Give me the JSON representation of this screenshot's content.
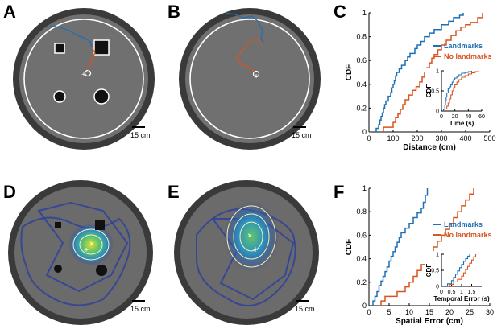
{
  "panels": {
    "A": "A",
    "B": "B",
    "C": "C",
    "D": "D",
    "E": "E",
    "F": "F"
  },
  "scale_bar_label": "15 cm",
  "colors": {
    "landmarks": "#1f6fb4",
    "no_landmarks": "#d9541e",
    "arena_floor": "#6e6e6e",
    "arena_rim": "#3a3a3a",
    "heatmap_low": "#2a3f9e",
    "heatmap_high": "#e6e02a"
  },
  "chart_data": [
    {
      "panel": "C",
      "type": "line",
      "step": true,
      "xlabel": "Distance (cm)",
      "ylabel": "CDF",
      "xlim": [
        0,
        500
      ],
      "ylim": [
        0,
        1
      ],
      "xticks": [
        0,
        100,
        200,
        300,
        400,
        500
      ],
      "yticks": [
        0,
        0.2,
        0.4,
        0.6,
        0.8,
        1
      ],
      "legend": "right",
      "series": [
        {
          "name": "Landmarks",
          "color": "#1f6fb4",
          "x": [
            30,
            40,
            45,
            50,
            55,
            60,
            65,
            70,
            80,
            90,
            95,
            100,
            105,
            110,
            115,
            125,
            135,
            150,
            160,
            170,
            190,
            200,
            215,
            230,
            250,
            270,
            300,
            330,
            350,
            375,
            390
          ],
          "y": [
            0.03,
            0.06,
            0.1,
            0.13,
            0.16,
            0.2,
            0.23,
            0.26,
            0.3,
            0.33,
            0.37,
            0.4,
            0.43,
            0.47,
            0.5,
            0.53,
            0.56,
            0.6,
            0.63,
            0.66,
            0.7,
            0.73,
            0.76,
            0.8,
            0.83,
            0.86,
            0.9,
            0.93,
            0.96,
            0.98,
            1.0
          ]
        },
        {
          "name": "No landmarks",
          "color": "#d9541e",
          "x": [
            60,
            100,
            110,
            120,
            130,
            140,
            150,
            165,
            180,
            195,
            210,
            220,
            230,
            240,
            250,
            260,
            270,
            285,
            300,
            320,
            340,
            360,
            380,
            400,
            420,
            450,
            470
          ],
          "y": [
            0.04,
            0.08,
            0.12,
            0.15,
            0.19,
            0.23,
            0.27,
            0.31,
            0.35,
            0.38,
            0.42,
            0.46,
            0.5,
            0.54,
            0.58,
            0.62,
            0.65,
            0.69,
            0.73,
            0.77,
            0.81,
            0.85,
            0.88,
            0.9,
            0.92,
            0.96,
            1.0
          ]
        }
      ]
    },
    {
      "panel": "C-inset",
      "type": "line",
      "step": true,
      "xlabel": "Time (s)",
      "ylabel": "CDF",
      "xlim": [
        0,
        60
      ],
      "ylim": [
        0,
        1
      ],
      "xticks": [
        0,
        20,
        40,
        60
      ],
      "yticks": [
        0,
        0.5,
        1
      ],
      "series": [
        {
          "color": "#1f6fb4",
          "x": [
            3,
            5,
            6,
            7,
            8,
            10,
            12,
            14,
            16,
            18,
            20,
            23,
            26,
            30,
            35,
            40,
            45
          ],
          "y": [
            0.05,
            0.15,
            0.25,
            0.35,
            0.45,
            0.55,
            0.6,
            0.65,
            0.72,
            0.78,
            0.82,
            0.86,
            0.9,
            0.94,
            0.96,
            0.98,
            1.0
          ]
        },
        {
          "color": "#d9541e",
          "x": [
            5,
            8,
            10,
            12,
            14,
            16,
            18,
            20,
            23,
            26,
            30,
            35,
            40,
            45,
            50,
            55
          ],
          "y": [
            0.05,
            0.12,
            0.2,
            0.3,
            0.4,
            0.5,
            0.58,
            0.65,
            0.72,
            0.78,
            0.84,
            0.88,
            0.92,
            0.95,
            0.98,
            1.0
          ]
        }
      ]
    },
    {
      "panel": "F",
      "type": "line",
      "step": true,
      "xlabel": "Spatial Error (cm)",
      "ylabel": "CDF",
      "xlim": [
        0,
        30
      ],
      "ylim": [
        0,
        1
      ],
      "xticks": [
        0,
        5,
        10,
        15,
        20,
        25,
        30
      ],
      "yticks": [
        0,
        0.2,
        0.4,
        0.6,
        0.8,
        1
      ],
      "legend": "right",
      "series": [
        {
          "name": "Landmarks",
          "color": "#1f6fb4",
          "x": [
            1,
            1.5,
            2,
            2.5,
            3,
            3.5,
            4,
            4.5,
            5,
            5.5,
            6,
            6.5,
            7,
            7.5,
            8,
            9,
            10,
            11,
            12,
            13,
            13.5,
            14,
            14.5
          ],
          "y": [
            0.04,
            0.08,
            0.12,
            0.17,
            0.21,
            0.25,
            0.29,
            0.33,
            0.38,
            0.42,
            0.46,
            0.5,
            0.54,
            0.58,
            0.62,
            0.66,
            0.7,
            0.75,
            0.79,
            0.83,
            0.88,
            0.94,
            1.0
          ]
        },
        {
          "name": "No landmarks",
          "color": "#d9541e",
          "x": [
            3,
            4,
            7,
            9,
            10,
            11,
            12,
            13,
            14,
            15,
            16,
            17,
            18,
            19,
            20,
            21,
            22,
            23,
            24,
            25,
            26
          ],
          "y": [
            0.04,
            0.08,
            0.12,
            0.16,
            0.2,
            0.25,
            0.3,
            0.35,
            0.4,
            0.45,
            0.5,
            0.55,
            0.6,
            0.65,
            0.7,
            0.75,
            0.8,
            0.85,
            0.9,
            0.95,
            1.0
          ]
        }
      ]
    },
    {
      "panel": "F-inset",
      "type": "line",
      "step": true,
      "xlabel": "Temporal Error (s)",
      "ylabel": "CDF",
      "xlim": [
        0,
        2
      ],
      "ylim": [
        0,
        1
      ],
      "xticks": [
        0,
        0.5,
        1,
        1.5
      ],
      "xticklabels": [
        "0",
        "0.5",
        "1",
        "1.5"
      ],
      "yticks": [
        0,
        0.5,
        1
      ],
      "series": [
        {
          "color": "#1f6fb4",
          "x": [
            0.3,
            0.5,
            0.6,
            0.7,
            0.8,
            0.9,
            1.0,
            1.1,
            1.2,
            1.3,
            1.4
          ],
          "y": [
            0.08,
            0.18,
            0.28,
            0.38,
            0.48,
            0.58,
            0.68,
            0.78,
            0.86,
            0.94,
            1.0
          ]
        },
        {
          "color": "#d9541e",
          "x": [
            0.4,
            0.6,
            0.8,
            1.0,
            1.1,
            1.2,
            1.3,
            1.4,
            1.5,
            1.6,
            1.7
          ],
          "y": [
            0.06,
            0.14,
            0.22,
            0.32,
            0.42,
            0.52,
            0.62,
            0.72,
            0.82,
            0.92,
            1.0
          ]
        }
      ]
    }
  ]
}
